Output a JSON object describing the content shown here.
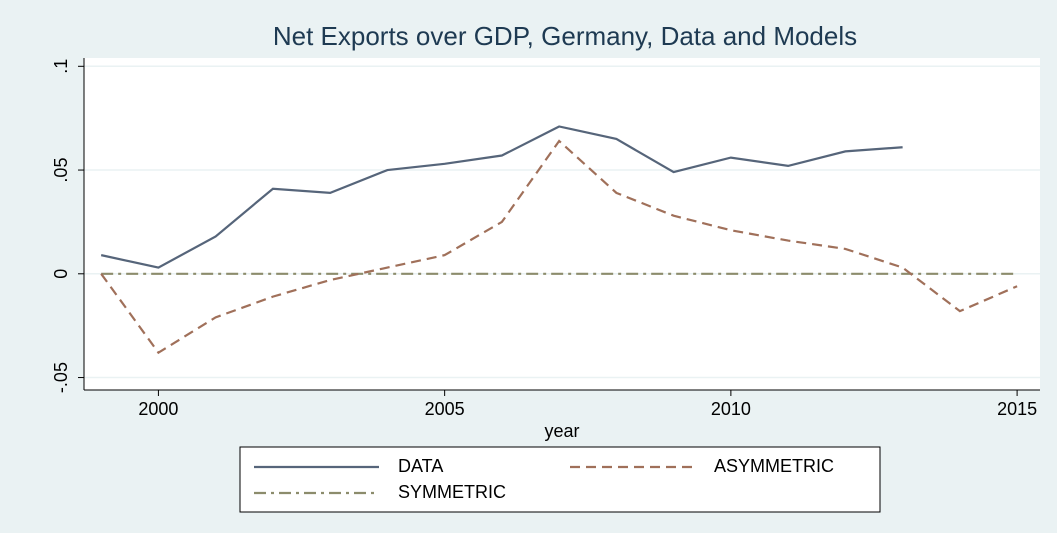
{
  "chart_data": {
    "type": "line",
    "title": "Net Exports over GDP, Germany, Data and Models",
    "xlabel": "year",
    "x": [
      1999,
      2000,
      2001,
      2002,
      2003,
      2004,
      2005,
      2006,
      2007,
      2008,
      2009,
      2010,
      2011,
      2012,
      2013,
      2014,
      2015
    ],
    "series": [
      {
        "name": "DATA",
        "color": "#56657a",
        "dash": "solid",
        "values": [
          0.009,
          0.003,
          0.018,
          0.041,
          0.039,
          0.05,
          0.053,
          0.057,
          0.071,
          0.065,
          0.049,
          0.056,
          0.052,
          0.059,
          0.061,
          null,
          null
        ]
      },
      {
        "name": "ASYMMETRIC",
        "color": "#a0705a",
        "dash": "dash",
        "values": [
          0,
          -0.038,
          -0.021,
          -0.011,
          -0.003,
          0.003,
          0.009,
          0.025,
          0.064,
          0.039,
          0.028,
          0.021,
          0.016,
          0.012,
          0.003,
          -0.018,
          -0.006
        ]
      },
      {
        "name": "SYMMETRIC",
        "color": "#8c8c6c",
        "dash": "dashdot",
        "values": [
          0,
          0,
          0,
          0,
          0,
          0,
          0,
          0,
          0,
          0,
          0,
          0,
          0,
          0,
          0,
          0,
          0
        ]
      }
    ],
    "xlim": [
      1998.7,
      2015.4
    ],
    "xticks": [
      2000,
      2005,
      2010,
      2015
    ],
    "ylim": [
      -0.056,
      0.104
    ],
    "yticks": [
      {
        "value": -0.05,
        "label": "-.05"
      },
      0,
      {
        "value": 0.05,
        "label": ".05"
      },
      {
        "value": 0.1,
        "label": ".1"
      }
    ],
    "grid": true
  }
}
